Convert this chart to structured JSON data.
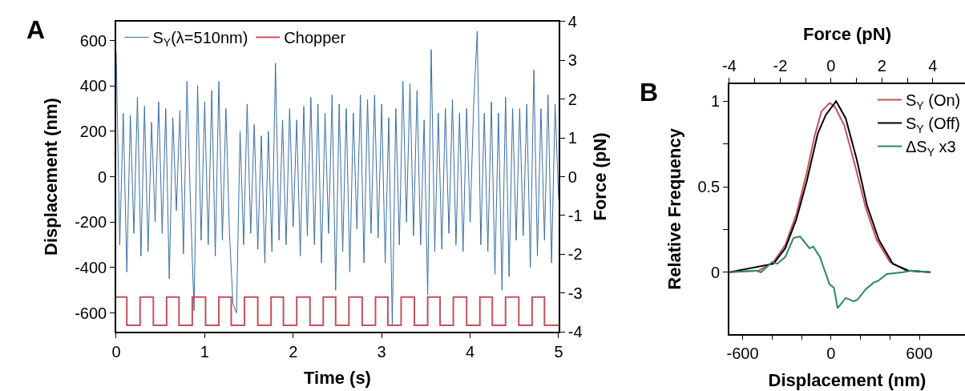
{
  "chart_data": [
    {
      "type": "line",
      "annotations": [
        "A"
      ],
      "xlabel": "Time (s)",
      "ylabel": "Displacement (nm)",
      "y2label": "Force (pN)",
      "xlim": [
        0,
        5
      ],
      "xticks": [
        0,
        1,
        2,
        3,
        4,
        5
      ],
      "ylim": [
        -683,
        683
      ],
      "yticks": [
        -600,
        -400,
        -200,
        0,
        200,
        400,
        600
      ],
      "y2lim": [
        -4,
        4
      ],
      "y2ticks": [
        -4,
        -3,
        -2,
        -1,
        0,
        1,
        2,
        3,
        4
      ],
      "legend": "top left",
      "series": [
        {
          "name": "S$_{Y}$(λ=510nm)",
          "color": "#3a6ea5",
          "x": [
            0,
            0.04,
            0.08,
            0.12,
            0.16,
            0.2,
            0.24,
            0.28,
            0.32,
            0.36,
            0.4,
            0.44,
            0.48,
            0.52,
            0.56,
            0.6,
            0.64,
            0.68,
            0.72,
            0.76,
            0.8,
            0.84,
            0.88,
            0.92,
            0.96,
            1.0,
            1.04,
            1.08,
            1.12,
            1.16,
            1.2,
            1.24,
            1.28,
            1.32,
            1.36,
            1.4,
            1.44,
            1.48,
            1.52,
            1.56,
            1.6,
            1.64,
            1.68,
            1.72,
            1.76,
            1.8,
            1.84,
            1.88,
            1.92,
            1.96,
            2.0,
            2.04,
            2.08,
            2.12,
            2.16,
            2.2,
            2.24,
            2.28,
            2.32,
            2.36,
            2.4,
            2.44,
            2.48,
            2.52,
            2.56,
            2.6,
            2.64,
            2.68,
            2.72,
            2.76,
            2.8,
            2.84,
            2.88,
            2.92,
            2.96,
            3.0,
            3.04,
            3.08,
            3.12,
            3.16,
            3.2,
            3.24,
            3.28,
            3.32,
            3.36,
            3.4,
            3.44,
            3.48,
            3.52,
            3.56,
            3.6,
            3.64,
            3.68,
            3.72,
            3.76,
            3.8,
            3.84,
            3.88,
            3.92,
            3.96,
            4.0,
            4.04,
            4.08,
            4.12,
            4.16,
            4.2,
            4.24,
            4.28,
            4.32,
            4.36,
            4.4,
            4.44,
            4.48,
            4.52,
            4.56,
            4.6,
            4.64,
            4.68,
            4.72,
            4.76,
            4.8,
            4.84,
            4.88,
            4.92,
            4.96,
            5.0
          ],
          "values": [
            550,
            -300,
            280,
            -420,
            270,
            -250,
            350,
            -350,
            310,
            -330,
            240,
            -200,
            330,
            -250,
            300,
            -450,
            260,
            -150,
            290,
            -340,
            420,
            -130,
            -590,
            400,
            -280,
            330,
            -300,
            380,
            -350,
            420,
            -280,
            300,
            -250,
            -560,
            -600,
            200,
            -300,
            320,
            -250,
            230,
            -320,
            180,
            -380,
            200,
            -330,
            500,
            -280,
            250,
            -300,
            300,
            -220,
            250,
            -350,
            310,
            -260,
            350,
            -300,
            320,
            -380,
            280,
            -250,
            360,
            -500,
            320,
            -330,
            300,
            -420,
            280,
            -230,
            360,
            -380,
            340,
            -250,
            360,
            -270,
            320,
            -380,
            260,
            -650,
            300,
            -300,
            420,
            -200,
            410,
            -260,
            380,
            -300,
            250,
            -520,
            560,
            -330,
            280,
            -320,
            300,
            -250,
            340,
            -300,
            280,
            -330,
            300,
            -200,
            320,
            640,
            -300,
            280,
            -330,
            330,
            -430,
            280,
            -500,
            350,
            -440,
            300,
            -280,
            300,
            -260,
            320,
            -400,
            470,
            -350,
            300,
            -280,
            360,
            -380,
            320,
            -100
          ]
        },
        {
          "name": "Chopper",
          "type": "step",
          "color": "#c8505a",
          "x": [
            0,
            0.12,
            0.27,
            0.42,
            0.57,
            0.71,
            0.86,
            1.01,
            1.16,
            1.3,
            1.45,
            1.6,
            1.75,
            1.89,
            2.04,
            2.19,
            2.34,
            2.48,
            2.63,
            2.78,
            2.93,
            3.07,
            3.22,
            3.37,
            3.52,
            3.66,
            3.81,
            3.96,
            4.11,
            4.25,
            4.4,
            4.55,
            4.7,
            4.84,
            5.0
          ],
          "values": [
            -530,
            -655,
            -530,
            -655,
            -530,
            -655,
            -530,
            -655,
            -530,
            -655,
            -530,
            -655,
            -530,
            -655,
            -530,
            -655,
            -530,
            -655,
            -530,
            -655,
            -530,
            -655,
            -530,
            -655,
            -530,
            -655,
            -530,
            -655,
            -530,
            -655,
            -530,
            -655,
            -530,
            -655,
            -655
          ]
        }
      ]
    },
    {
      "type": "line",
      "annotations": [
        "B"
      ],
      "xlabel": "Displacement (nm)",
      "x2label": "Force (pN)",
      "ylabel": "Relative Frequency",
      "xlim": [
        -690,
        910
      ],
      "xticks": [
        {
          "value": -600,
          "label": "-600"
        },
        {
          "value": -400,
          "label": null
        },
        {
          "value": -200,
          "label": null
        },
        {
          "value": 0,
          "label": "0"
        },
        {
          "value": 200,
          "label": null
        },
        {
          "value": 400,
          "label": null
        },
        {
          "value": 600,
          "label": "600"
        }
      ],
      "x2lim": [
        -4,
        5.27
      ],
      "x2ticks": [
        -4,
        {
          "value": -3,
          "label": null
        },
        -2,
        {
          "value": -1,
          "label": null
        },
        0,
        {
          "value": 1,
          "label": null
        },
        2,
        {
          "value": 3,
          "label": null
        },
        4
      ],
      "ylim": [
        -0.36,
        1.1
      ],
      "yticks": [
        0,
        {
          "value": 0.25,
          "label": null
        },
        0.5,
        {
          "value": 0.75,
          "label": null
        },
        1
      ],
      "legend": "top right",
      "series": [
        {
          "name": "S$_{Y}$ (On)",
          "color": "#c8505a",
          "x": [
            -690,
            -490,
            -390,
            -310,
            -235,
            -165,
            -110,
            -65,
            -10,
            25,
            90,
            165,
            235,
            310,
            400,
            510,
            675
          ],
          "values": [
            0,
            0.01,
            0.06,
            0.16,
            0.34,
            0.58,
            0.8,
            0.94,
            0.99,
            0.97,
            0.86,
            0.62,
            0.38,
            0.19,
            0.06,
            0.01,
            0
          ]
        },
        {
          "name": "S$_{Y}$ (Off)",
          "color": "#000000",
          "x": [
            -690,
            -390,
            -310,
            -235,
            -165,
            -90,
            -35,
            35,
            100,
            175,
            245,
            325,
            420,
            525,
            675
          ],
          "values": [
            0,
            0.05,
            0.14,
            0.31,
            0.53,
            0.81,
            0.92,
            1.0,
            0.9,
            0.66,
            0.39,
            0.19,
            0.05,
            0.01,
            0
          ]
        },
        {
          "name": "ΔS$_{Y}$ x3",
          "color": "#2a8a5e",
          "x": [
            -690,
            -510,
            -475,
            -400,
            -365,
            -310,
            -255,
            -210,
            -145,
            -120,
            -75,
            -10,
            20,
            45,
            100,
            155,
            180,
            235,
            290,
            320,
            380,
            490,
            545,
            675
          ],
          "values": [
            0,
            0.01,
            0,
            0.06,
            0.05,
            0.09,
            0.2,
            0.21,
            0.14,
            0.15,
            0.09,
            -0.07,
            -0.09,
            -0.21,
            -0.15,
            -0.17,
            -0.16,
            -0.1,
            -0.06,
            -0.05,
            -0.01,
            0,
            0.01,
            0
          ]
        }
      ]
    }
  ]
}
